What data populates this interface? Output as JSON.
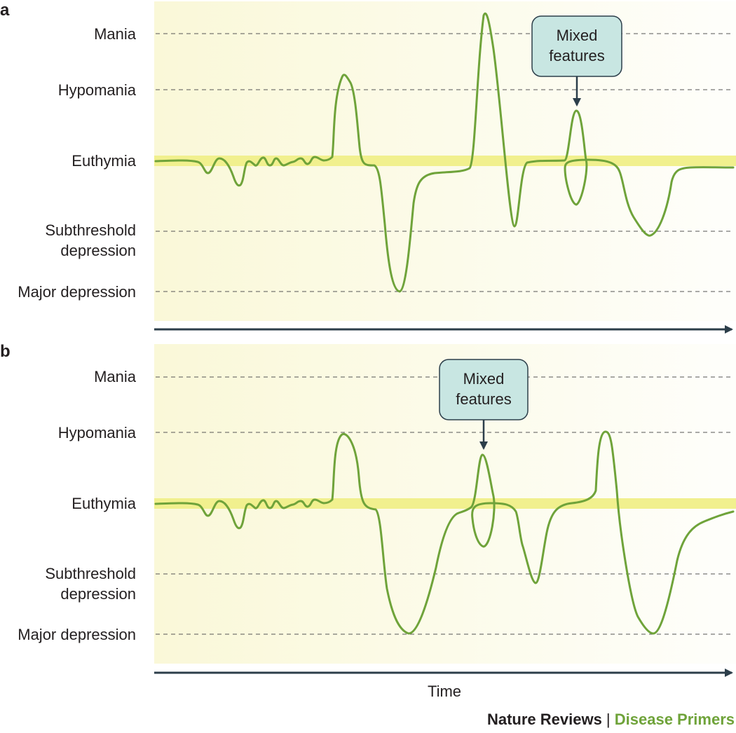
{
  "colors": {
    "curve": "#6fa33a",
    "euthymia_band": "#f1f08e",
    "panel_bg_from": "#faf8d8",
    "panel_bg_to": "#fefefb",
    "axis": "#2c3e4a",
    "callout_fill": "#c8e6e2",
    "callout_stroke": "#2c3e4a",
    "credit_dark": "#231f20",
    "credit_green": "#6fa33a"
  },
  "panels": [
    {
      "label": "a",
      "levels": [
        "Mania",
        "Hypomania",
        "Euthymia",
        "Subthreshold",
        "depression",
        "Major depression"
      ],
      "callout": {
        "line1": "Mixed",
        "line2": "features"
      }
    },
    {
      "label": "b",
      "levels": [
        "Mania",
        "Hypomania",
        "Euthymia",
        "Subthreshold",
        "depression",
        "Major depression"
      ],
      "callout": {
        "line1": "Mixed",
        "line2": "features"
      },
      "xaxis_label": "Time"
    }
  ],
  "credit": {
    "journal": "Nature Reviews",
    "separator": " | ",
    "series": "Disease Primers"
  }
}
